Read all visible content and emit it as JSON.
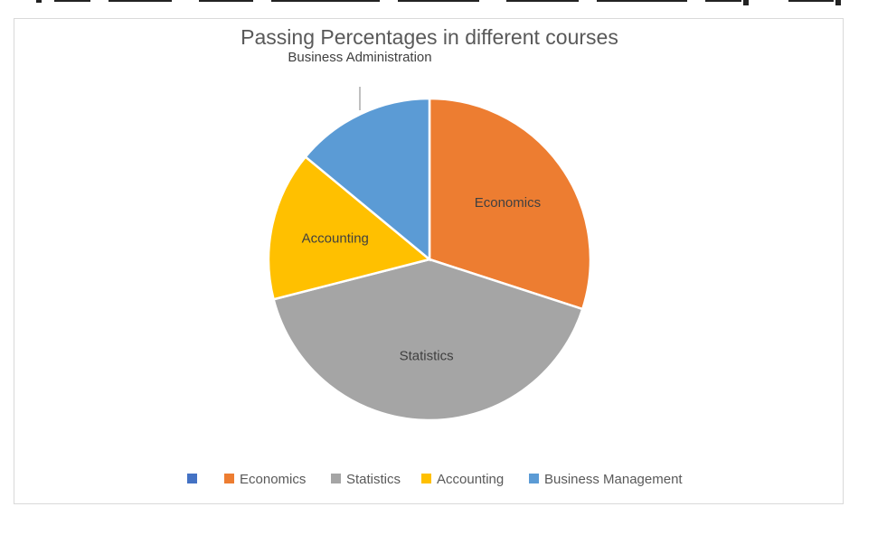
{
  "chart_data": {
    "type": "pie",
    "title": "Passing Percentages in different courses",
    "categories": [
      "",
      "Economics",
      "Statistics",
      "Accounting",
      "Business Management"
    ],
    "values": [
      0,
      30,
      41,
      15,
      14
    ],
    "colors": [
      "#4472c4",
      "#ed7d31",
      "#a5a5a5",
      "#ffc000",
      "#5b9bd5"
    ],
    "data_labels": [
      "Business Administration",
      "Economics",
      "Statistics",
      "Accounting",
      ""
    ],
    "legend_position": "bottom",
    "start_angle_deg": 0,
    "direction": "clockwise"
  },
  "colors": {
    "frame_border": "#d9d9d9",
    "title_text": "#595959",
    "label_text": "#404040",
    "slice_border": "#ffffff"
  }
}
